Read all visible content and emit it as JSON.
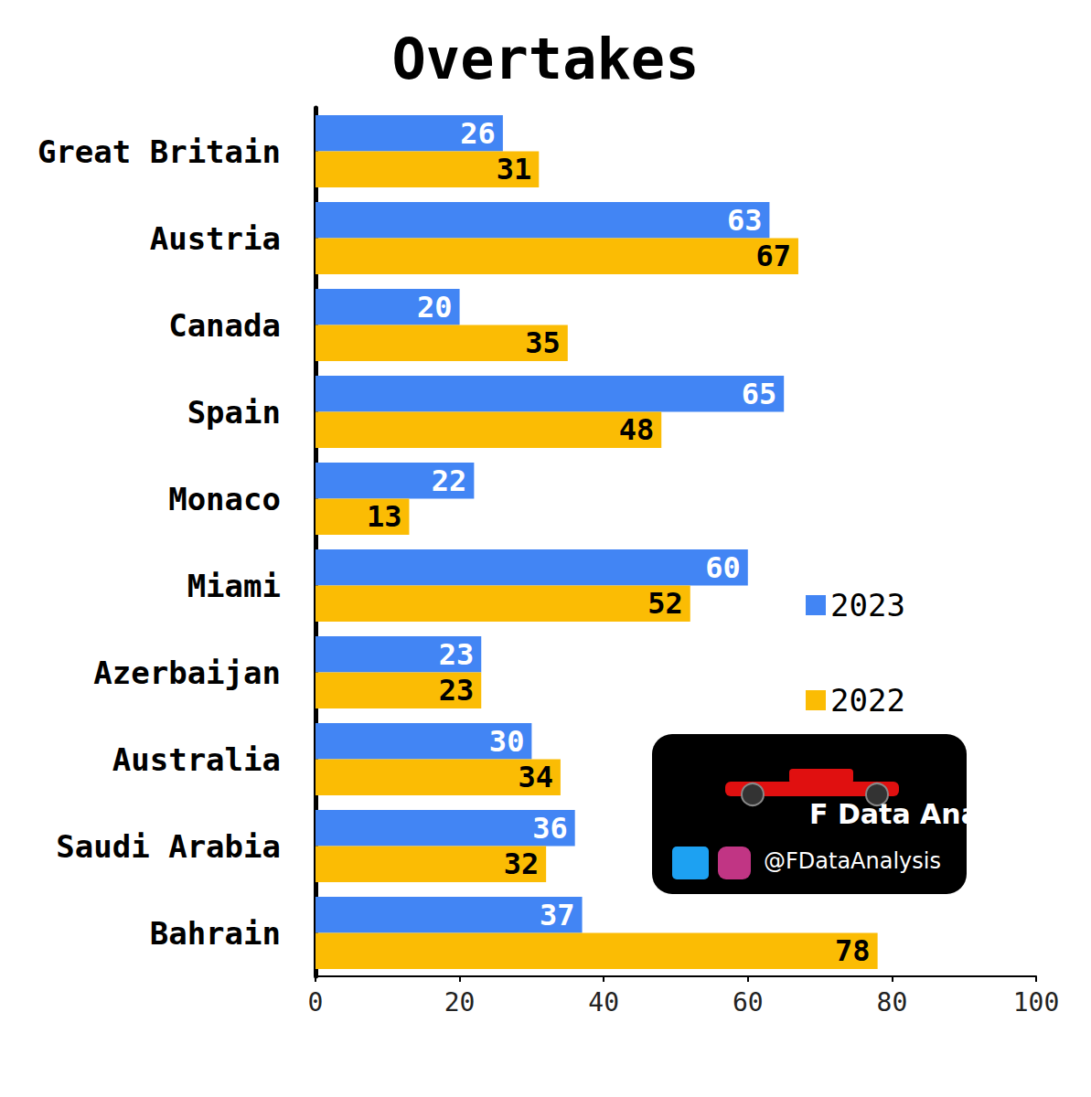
{
  "chart_data": {
    "type": "bar",
    "title": "Overtakes",
    "orientation": "horizontal",
    "categories": [
      "Great Britain",
      "Austria",
      "Canada",
      "Spain",
      "Monaco",
      "Miami",
      "Azerbaijan",
      "Australia",
      "Saudi Arabia",
      "Bahrain"
    ],
    "series": [
      {
        "name": "2023",
        "color": "#4285f4",
        "values": [
          26,
          63,
          20,
          65,
          22,
          60,
          23,
          30,
          36,
          37
        ]
      },
      {
        "name": "2022",
        "color": "#fbbc04",
        "values": [
          31,
          67,
          35,
          48,
          13,
          52,
          23,
          34,
          32,
          78
        ]
      }
    ],
    "xlim": [
      0,
      100
    ],
    "xticks": [
      0,
      20,
      40,
      60,
      80,
      100
    ],
    "grid": false,
    "legend": "right",
    "data_labels": true,
    "annotations": [
      "F Data Analysis",
      "@FDataAnalysis"
    ]
  }
}
